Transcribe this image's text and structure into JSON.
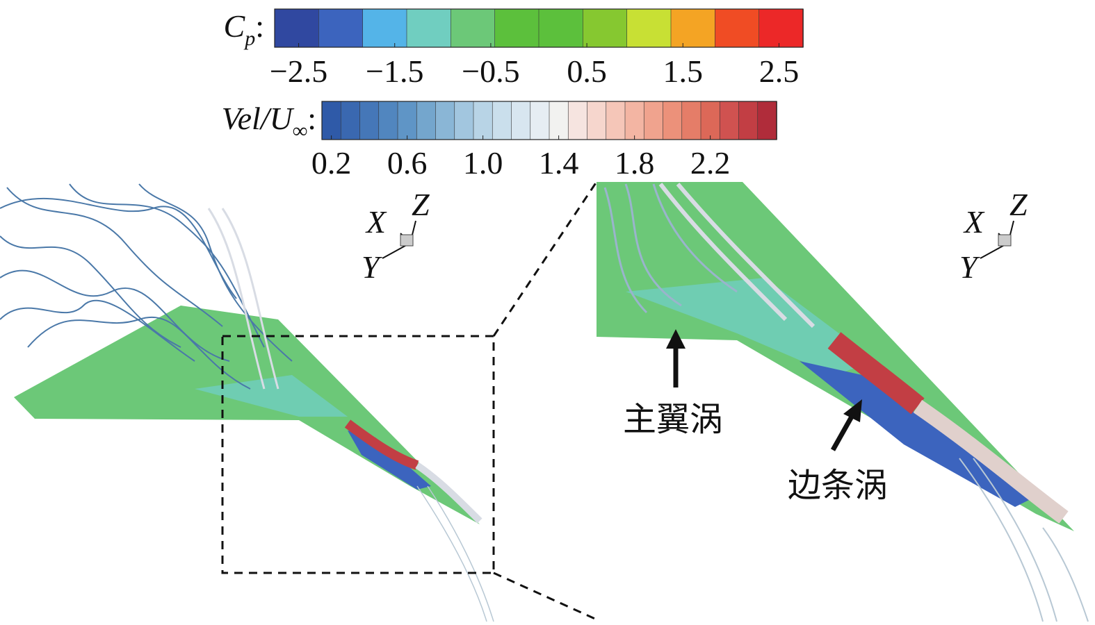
{
  "colorbars": [
    {
      "label": {
        "main": "C",
        "sub": "p",
        "suffix": ":"
      },
      "lim": [
        -2.75,
        2.75
      ],
      "colors": [
        "#3048a0",
        "#3c64be",
        "#54b4e8",
        "#70cec0",
        "#6cc878",
        "#5cc03c",
        "#5cc03c",
        "#86c830",
        "#c8e034",
        "#f4a424",
        "#f04c24",
        "#ec2828"
      ],
      "ticks": [
        {
          "value": -2.5,
          "label": "−2.5"
        },
        {
          "value": -1.5,
          "label": "−1.5"
        },
        {
          "value": -0.5,
          "label": "−0.5"
        },
        0.5,
        1.5,
        2.5
      ]
    },
    {
      "label": {
        "main": "Vel/U",
        "sub": "∞",
        "suffix": ":"
      },
      "lim": [
        0.15,
        2.55
      ],
      "colors": [
        "#2f5aa8",
        "#3a68b0",
        "#4577b8",
        "#5186bf",
        "#5f95c6",
        "#74a6cd",
        "#8ab6d6",
        "#a2c6df",
        "#b8d4e6",
        "#cadfec",
        "#d8e6f0",
        "#e6edf3",
        "#f2f2f0",
        "#f6e4e0",
        "#f6d6cd",
        "#f5c6b8",
        "#f3b5a3",
        "#f0a38e",
        "#ec917a",
        "#e57d68",
        "#dc6858",
        "#d05250",
        "#c23e44",
        "#b02c3a"
      ],
      "ticks": [
        0.2,
        0.6,
        {
          "value": 1.0,
          "label": "1.0"
        },
        1.4,
        1.8,
        2.2
      ]
    }
  ],
  "triads": [
    {
      "x": "X",
      "y": "Y",
      "z": "Z"
    },
    {
      "x": "X",
      "y": "Y",
      "z": "Z"
    }
  ],
  "annotations": [
    "主翼涡",
    "边条涡"
  ]
}
